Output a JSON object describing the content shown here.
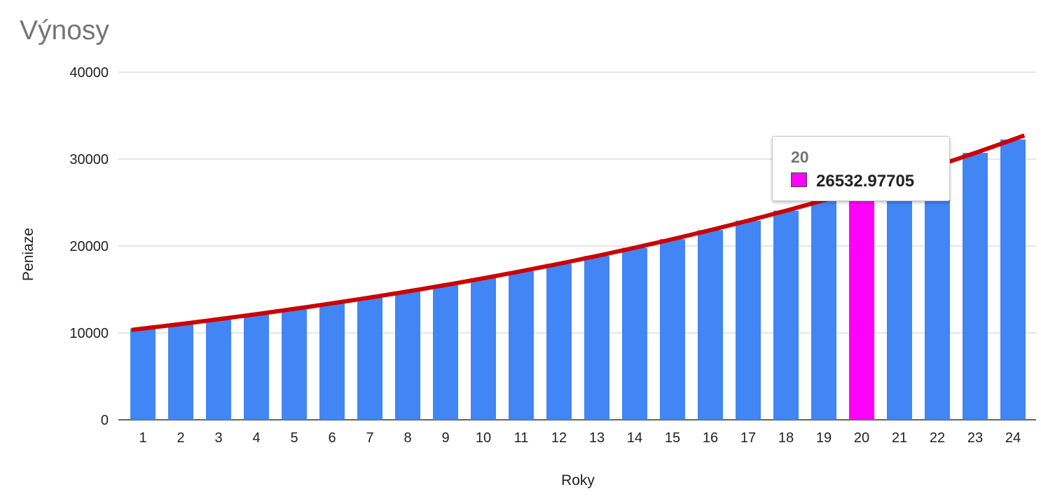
{
  "chart_data": {
    "type": "bar",
    "title": "Výnosy",
    "xlabel": "Roky",
    "ylabel": "Peniaze",
    "ylim": [
      0,
      40000
    ],
    "yticks": [
      0,
      10000,
      20000,
      30000,
      40000
    ],
    "grid": true,
    "categories": [
      "1",
      "2",
      "3",
      "4",
      "5",
      "6",
      "7",
      "8",
      "9",
      "10",
      "11",
      "12",
      "13",
      "14",
      "15",
      "16",
      "17",
      "18",
      "19",
      "20",
      "21",
      "22",
      "23",
      "24"
    ],
    "series": [
      {
        "values": [
          10500,
          11025,
          11576.25,
          12155.06,
          12762.82,
          13400.96,
          14071.0,
          14774.55,
          15513.28,
          16288.95,
          17103.39,
          17958.56,
          18856.49,
          19799.32,
          20789.28,
          21828.75,
          22920.18,
          24066.19,
          25269.5,
          26532.98,
          27859.63,
          29252.61,
          30715.24,
          32251.0
        ],
        "color": "#4285f4"
      }
    ],
    "trendline": {
      "type": "exponential",
      "color": "#cc0000",
      "x_range": [
        0.7,
        24.3
      ]
    },
    "highlight": {
      "category": "20",
      "color": "#ff00ff"
    },
    "tooltip": {
      "x_label": "20",
      "value": "26532.97705",
      "swatch_color": "#ff00ff"
    }
  }
}
